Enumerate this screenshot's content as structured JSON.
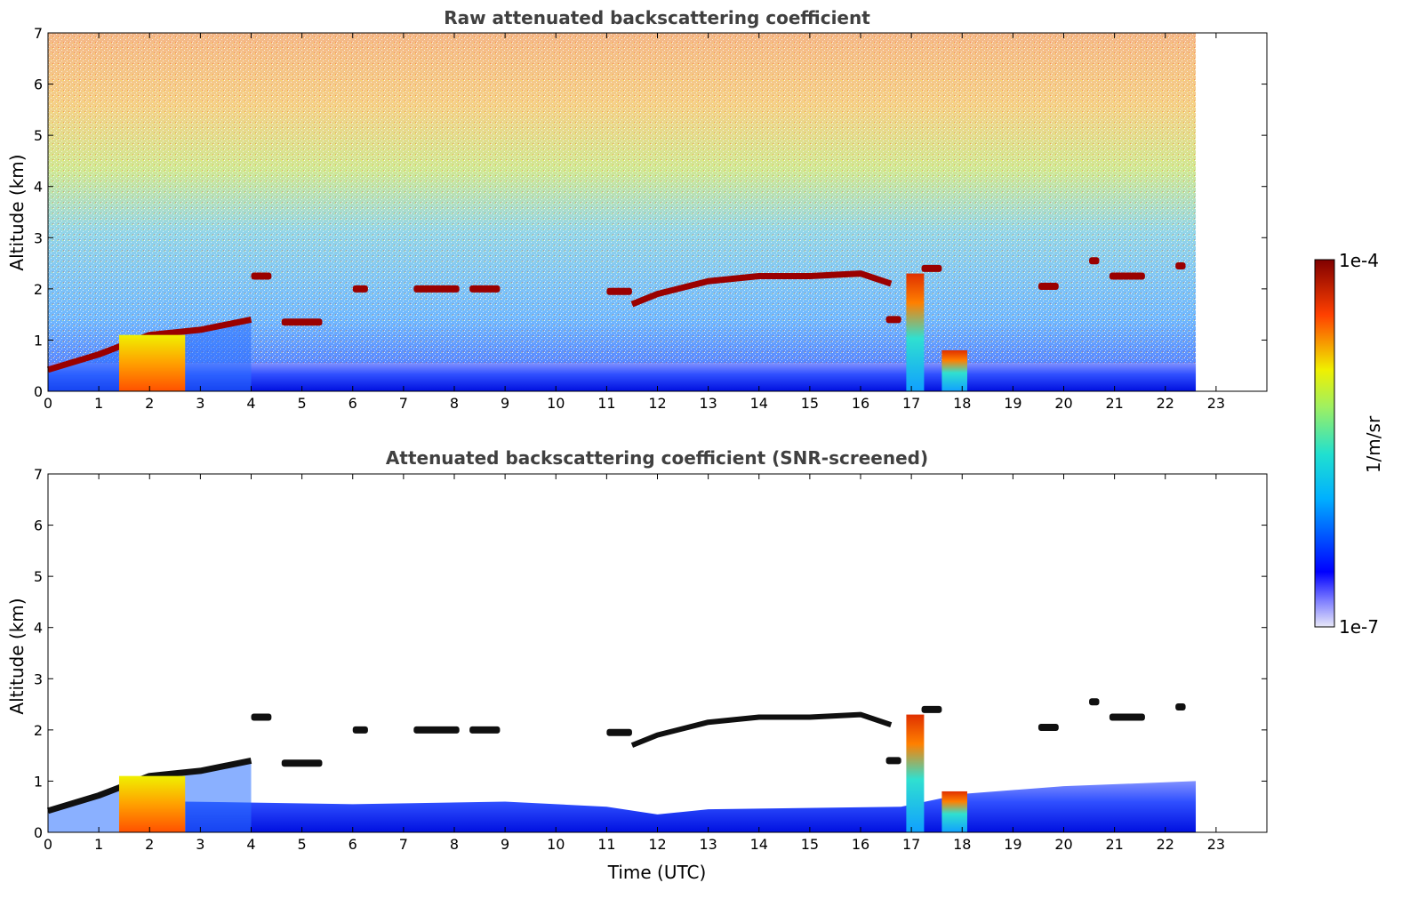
{
  "chart_data": [
    {
      "type": "heatmap",
      "title": "Raw attenuated backscattering coefficient",
      "xlabel": "",
      "ylabel": "Altitude (km)",
      "xlim": [
        0,
        24
      ],
      "ylim": [
        0,
        7
      ],
      "xticks": [
        "0",
        "1",
        "2",
        "3",
        "4",
        "5",
        "6",
        "7",
        "8",
        "9",
        "10",
        "11",
        "12",
        "13",
        "14",
        "15",
        "16",
        "17",
        "18",
        "19",
        "20",
        "21",
        "22",
        "23"
      ],
      "yticks": [
        "0",
        "1",
        "2",
        "3",
        "4",
        "5",
        "6",
        "7"
      ],
      "data_end_time": 22.6,
      "features": [
        {
          "kind": "cloud_base_layer",
          "t": [
            0,
            1,
            2,
            3,
            4
          ],
          "alt": [
            0.42,
            0.72,
            1.1,
            1.2,
            1.4
          ]
        },
        {
          "kind": "cloud_segment",
          "t_start": 4.0,
          "t_end": 4.4,
          "alt": 2.25
        },
        {
          "kind": "cloud_segment",
          "t_start": 4.6,
          "t_end": 5.4,
          "alt": 1.35
        },
        {
          "kind": "cloud_segment",
          "t_start": 6.0,
          "t_end": 6.3,
          "alt": 2.0
        },
        {
          "kind": "cloud_segment",
          "t_start": 7.2,
          "t_end": 8.1,
          "alt": 2.0
        },
        {
          "kind": "cloud_segment",
          "t_start": 8.3,
          "t_end": 8.9,
          "alt": 2.0
        },
        {
          "kind": "cloud_segment",
          "t_start": 11.0,
          "t_end": 11.5,
          "alt": 1.95
        },
        {
          "kind": "cloud_segment",
          "t_start": 16.5,
          "t_end": 16.8,
          "alt": 1.4
        },
        {
          "kind": "cloud_segment",
          "t_start": 17.2,
          "t_end": 17.6,
          "alt": 2.4
        },
        {
          "kind": "cloud_segment",
          "t_start": 19.5,
          "t_end": 19.9,
          "alt": 2.05
        },
        {
          "kind": "cloud_segment",
          "t_start": 20.5,
          "t_end": 20.7,
          "alt": 2.55
        },
        {
          "kind": "cloud_segment",
          "t_start": 20.9,
          "t_end": 21.6,
          "alt": 2.25
        },
        {
          "kind": "cloud_segment",
          "t_start": 22.2,
          "t_end": 22.4,
          "alt": 2.45
        },
        {
          "kind": "rising_cloud_layer",
          "t": [
            11.5,
            12,
            13,
            14,
            15,
            16,
            16.6
          ],
          "alt": [
            1.7,
            1.9,
            2.15,
            2.25,
            2.25,
            2.3,
            2.1
          ]
        },
        {
          "kind": "precip_column",
          "t_start": 1.4,
          "t_end": 2.7,
          "alt_top": 1.1
        },
        {
          "kind": "precip_column",
          "t_start": 16.9,
          "t_end": 17.25,
          "alt_top": 2.3
        },
        {
          "kind": "precip_column",
          "t_start": 17.6,
          "t_end": 18.1,
          "alt_top": 0.8
        }
      ]
    },
    {
      "type": "heatmap",
      "title": "Attenuated backscattering coefficient (SNR-screened)",
      "xlabel": "Time (UTC)",
      "ylabel": "Altitude (km)",
      "xlim": [
        0,
        24
      ],
      "ylim": [
        0,
        7
      ],
      "xticks": [
        "0",
        "1",
        "2",
        "3",
        "4",
        "5",
        "6",
        "7",
        "8",
        "9",
        "10",
        "11",
        "12",
        "13",
        "14",
        "15",
        "16",
        "17",
        "18",
        "19",
        "20",
        "21",
        "22",
        "23"
      ],
      "yticks": [
        "0",
        "1",
        "2",
        "3",
        "4",
        "5",
        "6",
        "7"
      ],
      "data_end_time": 22.6,
      "features": [
        {
          "kind": "cloud_base_layer",
          "t": [
            0,
            1,
            2,
            3,
            4
          ],
          "alt": [
            0.42,
            0.72,
            1.1,
            1.2,
            1.4
          ]
        },
        {
          "kind": "boundary_layer_top",
          "t": [
            2.7,
            6,
            9,
            11,
            12,
            13,
            16.8,
            18,
            20,
            22.6
          ],
          "alt": [
            0.6,
            0.55,
            0.6,
            0.5,
            0.35,
            0.45,
            0.5,
            0.75,
            0.9,
            1.0
          ]
        },
        {
          "kind": "precip_column",
          "t_start": 1.4,
          "t_end": 2.7,
          "alt_top": 1.1
        },
        {
          "kind": "precip_column",
          "t_start": 16.9,
          "t_end": 17.25,
          "alt_top": 2.3
        }
      ]
    }
  ],
  "colorbar": {
    "label": "1/m/sr",
    "max_label": "1e-4",
    "min_label": "1e-7",
    "scale": "log",
    "range": [
      1e-07,
      0.0001
    ],
    "colormap": "jet"
  }
}
